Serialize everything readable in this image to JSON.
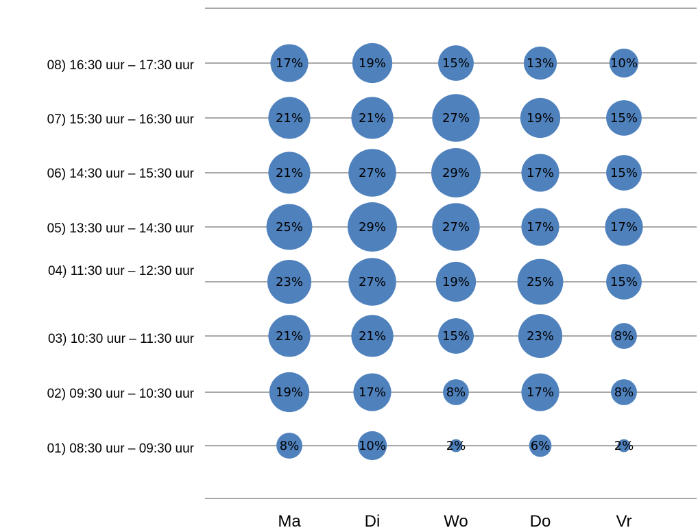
{
  "chart_data": {
    "type": "bubble",
    "title": "",
    "xlabel": "",
    "ylabel": "",
    "categories": [
      "Ma",
      "Di",
      "Wo",
      "Do",
      "Vr"
    ],
    "rows": [
      "08) 16:30 uur – 17:30 uur",
      "07) 15:30 uur – 16:30 uur",
      "06) 14:30 uur – 15:30 uur",
      "05) 13:30 uur – 14:30 uur",
      "04) 11:30 uur – 12:30 uur",
      "03) 10:30 uur – 11:30 uur",
      "02) 09:30 uur – 10:30 uur",
      "01) 08:30 uur – 09:30 uur"
    ],
    "values": [
      [
        17,
        19,
        15,
        13,
        10
      ],
      [
        21,
        21,
        27,
        19,
        15
      ],
      [
        21,
        27,
        29,
        17,
        15
      ],
      [
        25,
        29,
        27,
        17,
        17
      ],
      [
        23,
        27,
        19,
        25,
        15
      ],
      [
        21,
        21,
        15,
        23,
        8
      ],
      [
        19,
        17,
        8,
        17,
        8
      ],
      [
        8,
        10,
        2,
        6,
        2
      ]
    ],
    "value_labels": [
      [
        "17%",
        "19%",
        "15%",
        "13%",
        "10%"
      ],
      [
        "21%",
        "21%",
        "27%",
        "19%",
        "15%"
      ],
      [
        "21%",
        "27%",
        "29%",
        "17%",
        "15%"
      ],
      [
        "25%",
        "29%",
        "27%",
        "17%",
        "17%"
      ],
      [
        "23%",
        "27%",
        "19%",
        "25%",
        "15%"
      ],
      [
        "21%",
        "21%",
        "15%",
        "23%",
        "8%"
      ],
      [
        "19%",
        "17%",
        "8%",
        "17%",
        "8%"
      ],
      [
        "8%",
        "10%",
        "2%",
        "6%",
        "2%"
      ]
    ],
    "colors": {
      "bubble": "#4f81bd",
      "gridline": "#8c8c8c"
    },
    "grid": true,
    "legend": "none"
  }
}
